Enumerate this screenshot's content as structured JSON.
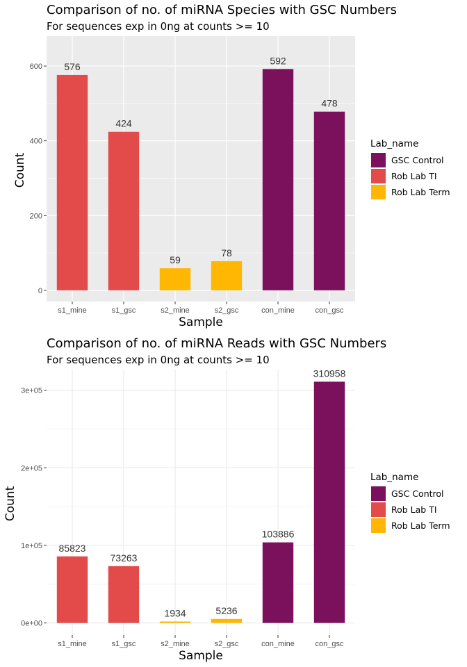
{
  "chart_data": [
    {
      "type": "bar",
      "title": "Comparison of no. of miRNA Species with GSC Numbers",
      "subtitle": "For sequences exp in 0ng at counts >= 10",
      "xlabel": "Sample",
      "ylabel": "Count",
      "categories": [
        "s1_mine",
        "s1_gsc",
        "s2_mine",
        "s2_gsc",
        "con_mine",
        "con_gsc"
      ],
      "values": [
        576,
        424,
        59,
        78,
        592,
        478
      ],
      "data_labels": [
        "576",
        "424",
        "59",
        "78",
        "592",
        "478"
      ],
      "groups": [
        "Rob Lab TI",
        "Rob Lab TI",
        "Rob Lab Term",
        "Rob Lab Term",
        "GSC Control",
        "GSC Control"
      ],
      "ylim": [
        -30,
        680
      ],
      "y_ticks": [
        0,
        200,
        400,
        600
      ],
      "y_tick_labels": [
        "0",
        "200",
        "400",
        "600"
      ],
      "panel_background": "#ebebeb",
      "grid_color": "#ffffff",
      "grid": true,
      "legend": {
        "title": "Lab_name",
        "placement": "right",
        "entries": [
          {
            "label": "GSC Control",
            "color": "#7b105c"
          },
          {
            "label": "Rob Lab TI",
            "color": "#e34a4a"
          },
          {
            "label": "Rob Lab Term",
            "color": "#ffb703"
          }
        ]
      }
    },
    {
      "type": "bar",
      "title": "Comparison of no. of miRNA Reads with GSC Numbers",
      "subtitle": "For sequences exp in 0ng at counts >= 10",
      "xlabel": "Sample",
      "ylabel": "Count",
      "categories": [
        "s1_mine",
        "s1_gsc",
        "s2_mine",
        "s2_gsc",
        "con_mine",
        "con_gsc"
      ],
      "values": [
        85823,
        73263,
        1934,
        5236,
        103886,
        310958
      ],
      "data_labels": [
        "85823",
        "73263",
        "1934",
        "5236",
        "103886",
        "310958"
      ],
      "groups": [
        "Rob Lab TI",
        "Rob Lab TI",
        "Rob Lab Term",
        "Rob Lab Term",
        "GSC Control",
        "GSC Control"
      ],
      "ylim": [
        -15548,
        326506
      ],
      "y_ticks": [
        0,
        100000,
        200000,
        300000
      ],
      "y_tick_labels": [
        "0e+00",
        "1e+05",
        "2e+05",
        "3e+05"
      ],
      "panel_background": "#ffffff",
      "grid_color": "#ebebeb",
      "grid": true,
      "legend": {
        "title": "Lab_name",
        "placement": "right",
        "entries": [
          {
            "label": "GSC Control",
            "color": "#7b105c"
          },
          {
            "label": "Rob Lab TI",
            "color": "#e34a4a"
          },
          {
            "label": "Rob Lab Term",
            "color": "#ffb703"
          }
        ]
      }
    }
  ]
}
